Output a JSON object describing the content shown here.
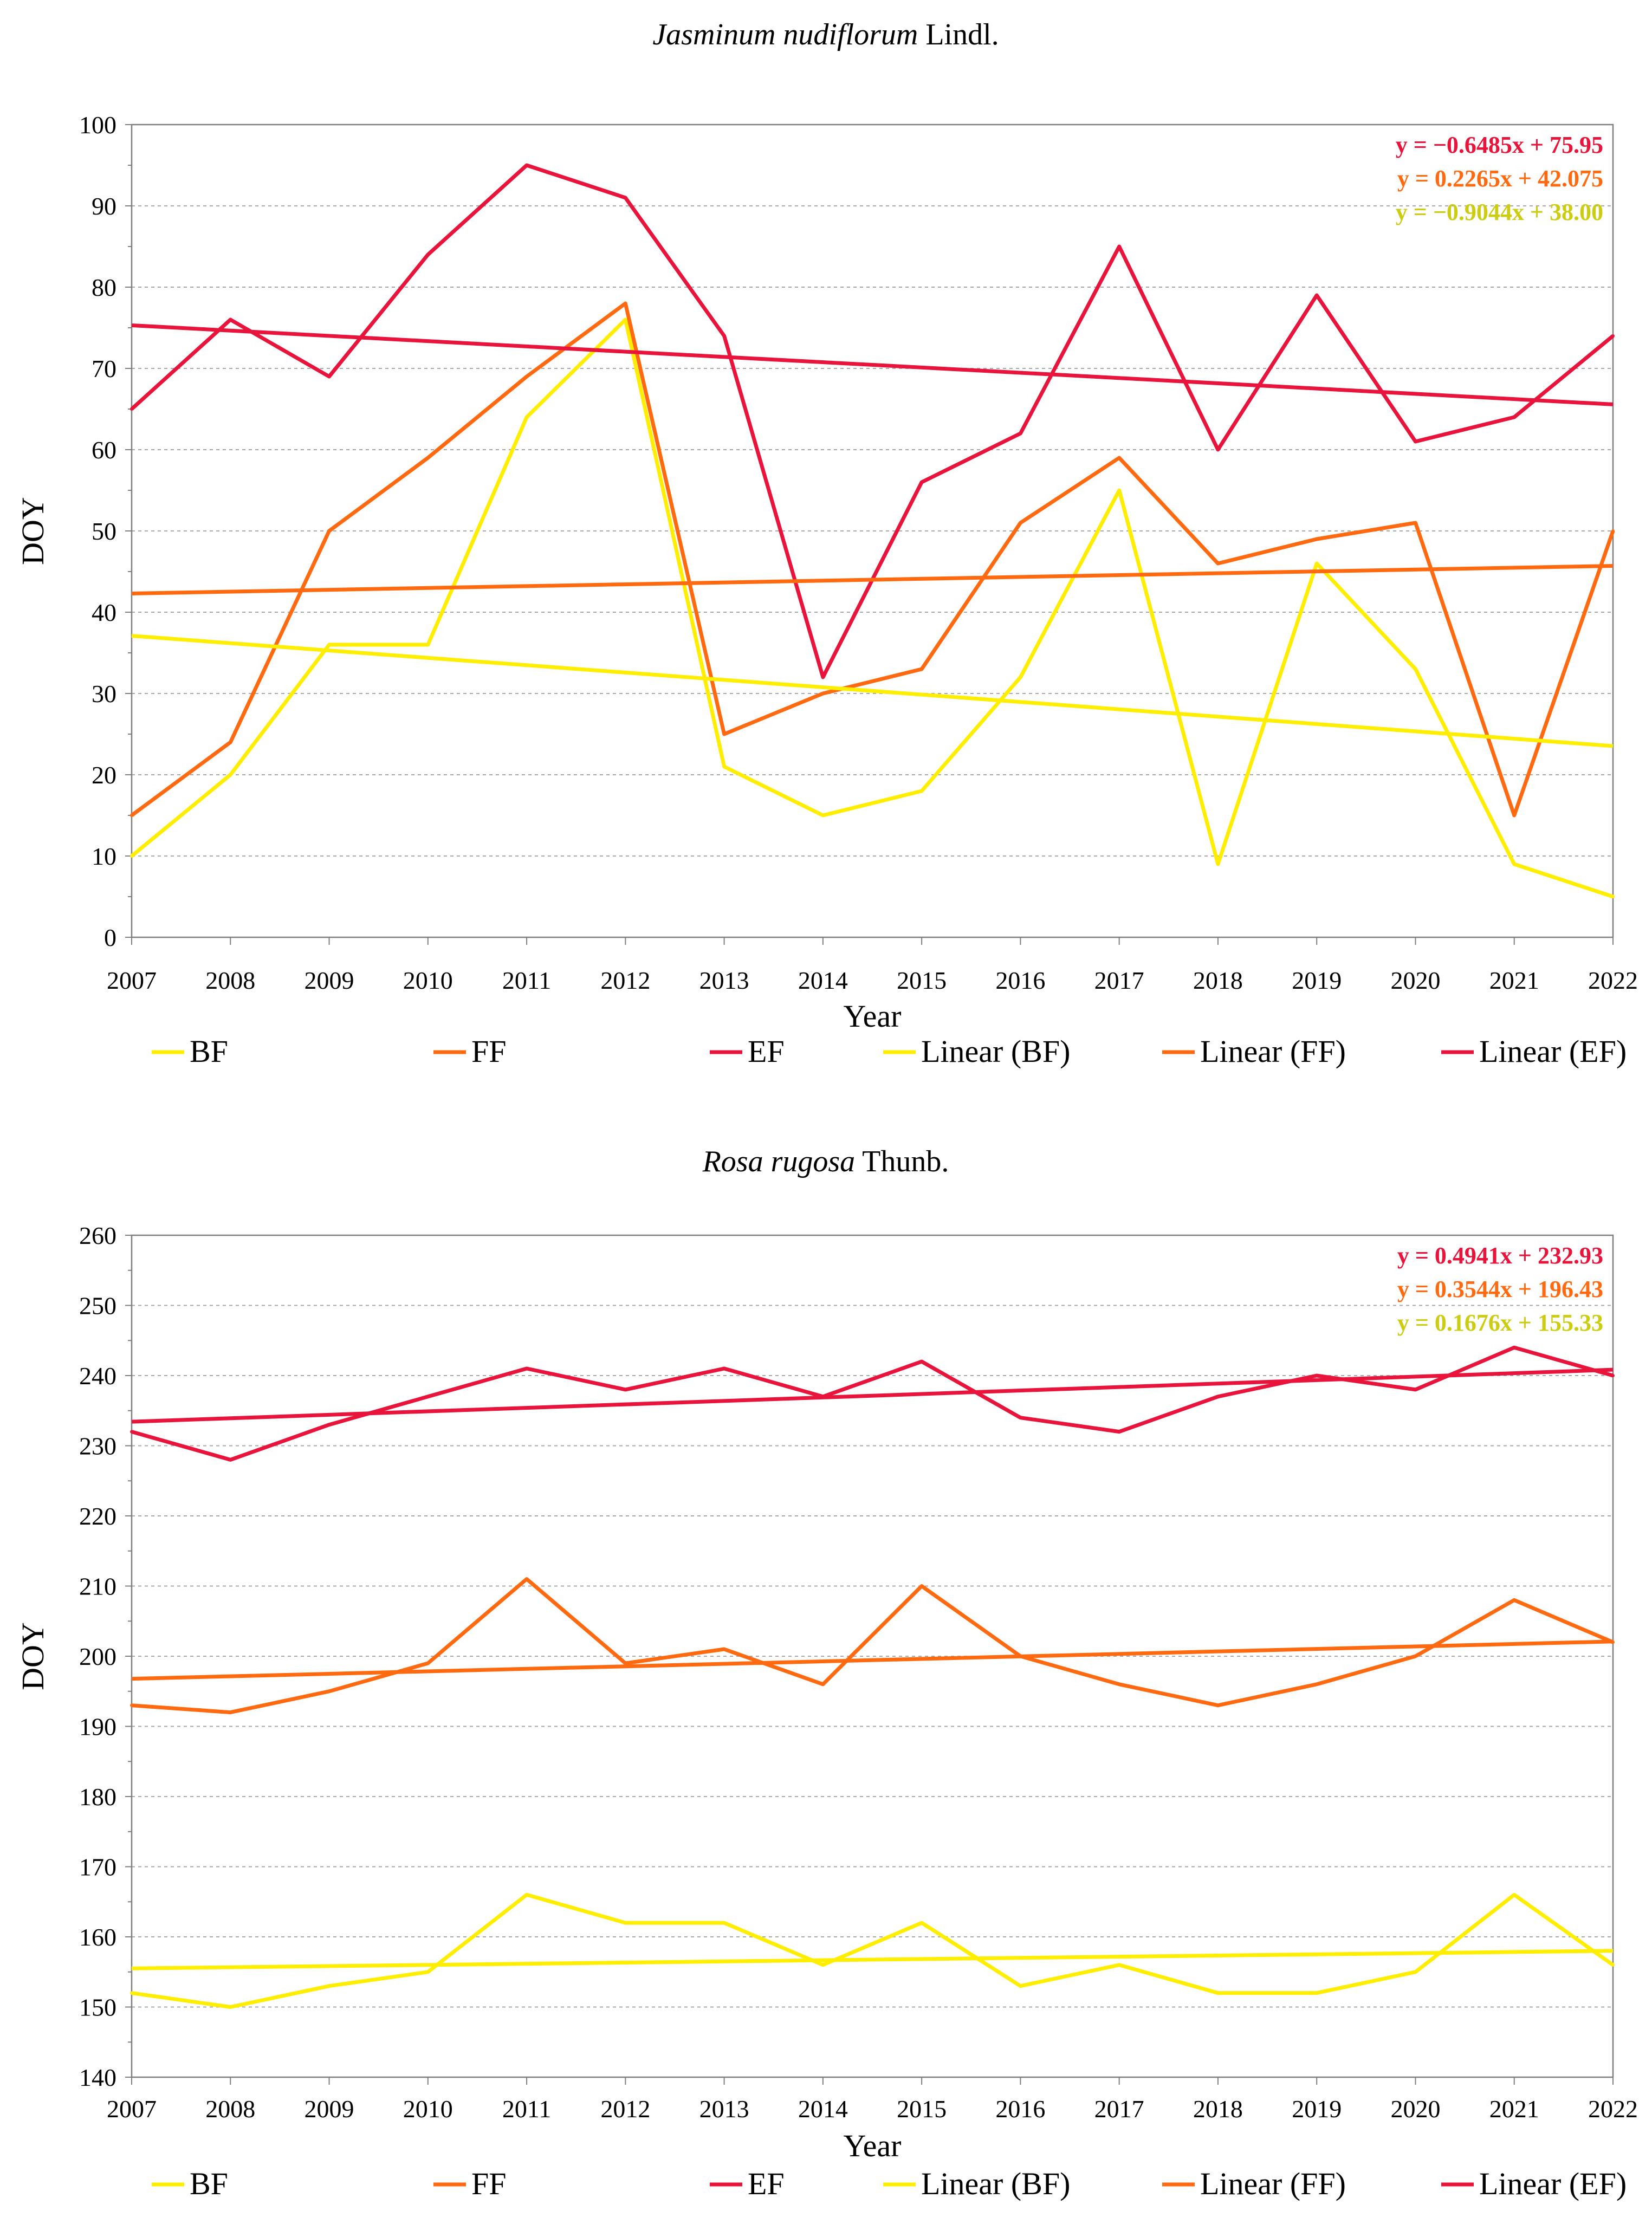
{
  "chart_data": [
    {
      "type": "line",
      "title_italic": "Jasminum nudiflorum",
      "title_rest": " Lindl.",
      "xlabel": "Year",
      "ylabel": "DOY",
      "ylim": [
        0,
        100
      ],
      "ytick_step": 10,
      "categories": [
        "2007",
        "2008",
        "2009",
        "2010",
        "2011",
        "2012",
        "2013",
        "2014",
        "2015",
        "2016",
        "2017",
        "2018",
        "2019",
        "2020",
        "2021",
        "2022"
      ],
      "series": [
        {
          "name": "BF",
          "color": "#ffee00",
          "values": [
            10,
            20,
            36,
            36,
            64,
            76,
            21,
            15,
            18,
            32,
            55,
            9,
            46,
            33,
            9,
            5
          ]
        },
        {
          "name": "FF",
          "color": "#ff6a10",
          "values": [
            15,
            24,
            50,
            59,
            69,
            78,
            25,
            30,
            33,
            51,
            59,
            46,
            49,
            51,
            15,
            50
          ]
        },
        {
          "name": "EF",
          "color": "#e8143c",
          "values": [
            65,
            76,
            69,
            84,
            95,
            91,
            74,
            32,
            56,
            62,
            85,
            60,
            79,
            61,
            64,
            74
          ]
        }
      ],
      "trendlines": [
        {
          "name": "Linear (BF)",
          "color": "#ffee00",
          "slope": -0.9044,
          "intercept": 38.0
        },
        {
          "name": "Linear (FF)",
          "color": "#ff6a10",
          "slope": 0.2265,
          "intercept": 42.075
        },
        {
          "name": "Linear (EF)",
          "color": "#e8143c",
          "slope": -0.6485,
          "intercept": 75.95
        }
      ],
      "equations": [
        {
          "text": "y = −0.6485x + 75.95",
          "color": "#e8143c"
        },
        {
          "text": "y = 0.2265x + 42.075",
          "color": "#ff6a10"
        },
        {
          "text": "y = −0.9044x + 38.00",
          "color": "#cccc10"
        }
      ],
      "legend": [
        "BF",
        "FF",
        "EF",
        "Linear (BF)",
        "Linear (FF)",
        "Linear (EF)"
      ],
      "grid": true
    },
    {
      "type": "line",
      "title_italic": "Rosa rugosa",
      "title_rest": " Thunb.",
      "xlabel": "Year",
      "ylabel": "DOY",
      "ylim": [
        140,
        260
      ],
      "ytick_step": 10,
      "categories": [
        "2007",
        "2008",
        "2009",
        "2010",
        "2011",
        "2012",
        "2013",
        "2014",
        "2015",
        "2016",
        "2017",
        "2018",
        "2019",
        "2020",
        "2021",
        "2022"
      ],
      "series": [
        {
          "name": "BF",
          "color": "#ffee00",
          "values": [
            152,
            150,
            153,
            155,
            166,
            162,
            162,
            156,
            162,
            153,
            156,
            152,
            152,
            155,
            166,
            156
          ]
        },
        {
          "name": "FF",
          "color": "#ff6a10",
          "values": [
            193,
            192,
            195,
            199,
            211,
            199,
            201,
            196,
            210,
            200,
            196,
            193,
            196,
            200,
            208,
            202
          ]
        },
        {
          "name": "EF",
          "color": "#e8143c",
          "values": [
            232,
            228,
            233,
            237,
            241,
            238,
            241,
            237,
            242,
            234,
            232,
            237,
            240,
            238,
            244,
            240
          ]
        }
      ],
      "trendlines": [
        {
          "name": "Linear (BF)",
          "color": "#ffee00",
          "slope": 0.1676,
          "intercept": 155.33
        },
        {
          "name": "Linear (FF)",
          "color": "#ff6a10",
          "slope": 0.3544,
          "intercept": 196.43
        },
        {
          "name": "Linear (EF)",
          "color": "#e8143c",
          "slope": 0.4941,
          "intercept": 232.93
        }
      ],
      "equations": [
        {
          "text": "y = 0.4941x + 232.93",
          "color": "#e8143c"
        },
        {
          "text": "y = 0.3544x + 196.43",
          "color": "#ff6a10"
        },
        {
          "text": "y = 0.1676x + 155.33",
          "color": "#cccc10"
        }
      ],
      "legend": [
        "BF",
        "FF",
        "EF",
        "Linear (BF)",
        "Linear (FF)",
        "Linear (EF)"
      ],
      "grid": true
    }
  ]
}
